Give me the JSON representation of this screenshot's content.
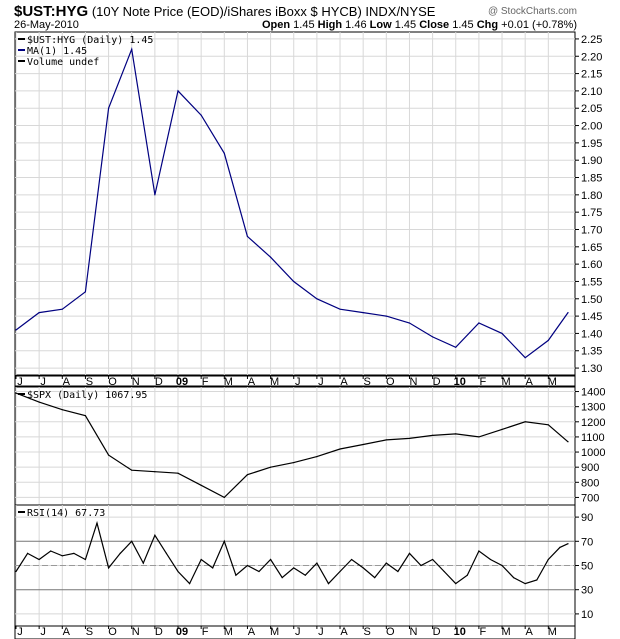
{
  "header": {
    "symbol": "$UST:HYG",
    "description": "(10Y Note Price (EOD)/iShares iBoxx $ HYCB) INDX/NYSE",
    "brand": "@ StockCharts.com",
    "date": "26-May-2010",
    "open_label": "Open",
    "open": "1.45",
    "high_label": "High",
    "high": "1.46",
    "low_label": "Low",
    "low": "1.45",
    "close_label": "Close",
    "close": "1.45",
    "chg_label": "Chg",
    "chg": "+0.01 (+0.78%)"
  },
  "x_axis_labels": [
    "J",
    "J",
    "A",
    "S",
    "O",
    "N",
    "D",
    "09",
    "F",
    "M",
    "A",
    "M",
    "J",
    "J",
    "A",
    "S",
    "O",
    "N",
    "D",
    "10",
    "F",
    "M",
    "A",
    "M"
  ],
  "chart_data": [
    {
      "type": "line",
      "legend": [
        "$UST:HYG (Daily) 1.45",
        "MA(1) 1.45",
        "Volume undef"
      ],
      "ylim": [
        1.28,
        2.27
      ],
      "yticks": [
        1.3,
        1.35,
        1.4,
        1.45,
        1.5,
        1.55,
        1.6,
        1.65,
        1.7,
        1.75,
        1.8,
        1.85,
        1.9,
        1.95,
        2.0,
        2.05,
        2.1,
        2.15,
        2.2,
        2.25
      ],
      "x_months": [
        0,
        1,
        2,
        3,
        4,
        5,
        6,
        7,
        8,
        9,
        10,
        11,
        12,
        13,
        14,
        15,
        16,
        17,
        18,
        19,
        20,
        21,
        22,
        23,
        23.85
      ],
      "values": [
        1.41,
        1.46,
        1.47,
        1.52,
        2.05,
        2.22,
        1.8,
        2.1,
        2.03,
        1.92,
        1.68,
        1.62,
        1.55,
        1.5,
        1.47,
        1.46,
        1.45,
        1.43,
        1.39,
        1.36,
        1.43,
        1.4,
        1.33,
        1.38,
        1.46
      ]
    },
    {
      "type": "line",
      "legend": "$SPX (Daily) 1067.95",
      "ylim": [
        650,
        1430
      ],
      "yticks": [
        700,
        800,
        900,
        1000,
        1100,
        1200,
        1300,
        1400
      ],
      "x_months": [
        0,
        1,
        2,
        3,
        4,
        5,
        6,
        7,
        8,
        9,
        10,
        11,
        12,
        13,
        14,
        15,
        16,
        17,
        18,
        19,
        20,
        21,
        22,
        23,
        23.85
      ],
      "values": [
        1390,
        1330,
        1280,
        1240,
        980,
        880,
        870,
        860,
        780,
        700,
        850,
        900,
        930,
        970,
        1020,
        1050,
        1080,
        1090,
        1110,
        1120,
        1100,
        1150,
        1200,
        1180,
        1068
      ]
    },
    {
      "type": "line",
      "legend": "RSI(14) 67.73",
      "ylim": [
        0,
        100
      ],
      "yticks": [
        10,
        30,
        50,
        70,
        90
      ],
      "reference_lines": [
        30,
        70
      ],
      "x_months": [
        0,
        0.5,
        1,
        1.5,
        2,
        2.5,
        3,
        3.5,
        4,
        4.5,
        5,
        5.5,
        6,
        6.5,
        7,
        7.5,
        8,
        8.5,
        9,
        9.5,
        10,
        10.5,
        11,
        11.5,
        12,
        12.5,
        13,
        13.5,
        14,
        14.5,
        15,
        15.5,
        16,
        16.5,
        17,
        17.5,
        18,
        18.5,
        19,
        19.5,
        20,
        20.5,
        21,
        21.5,
        22,
        22.5,
        23,
        23.5,
        23.85
      ],
      "values": [
        45,
        60,
        55,
        62,
        58,
        60,
        55,
        85,
        48,
        60,
        70,
        52,
        75,
        60,
        45,
        35,
        55,
        48,
        70,
        42,
        50,
        45,
        55,
        40,
        48,
        42,
        52,
        35,
        45,
        55,
        48,
        40,
        52,
        45,
        60,
        50,
        55,
        45,
        35,
        42,
        62,
        55,
        50,
        40,
        35,
        38,
        55,
        65,
        68
      ]
    }
  ]
}
